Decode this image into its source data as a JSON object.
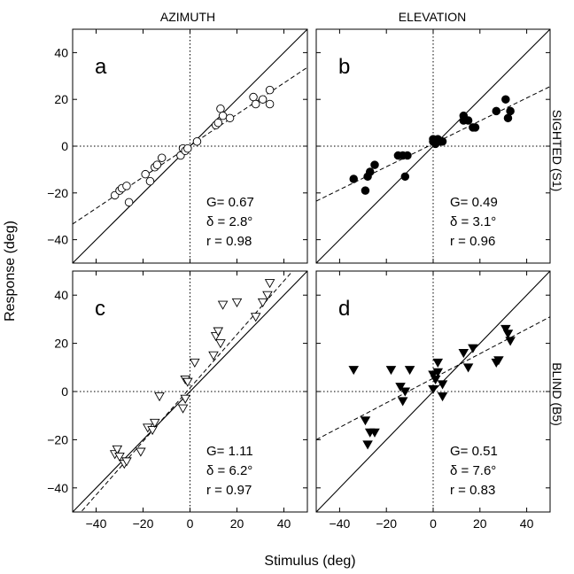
{
  "figure": {
    "xlabel": "Stimulus (deg)",
    "ylabel": "Response (deg)",
    "col_titles": [
      "AZIMUTH",
      "ELEVATION"
    ],
    "row_titles": [
      "SIGHTED (S1)",
      "BLIND (B5)"
    ]
  },
  "chart_data": [
    {
      "type": "scatter",
      "panel_label": "a",
      "marker": "circle-open",
      "xlim": [
        -50,
        50
      ],
      "ylim": [
        -50,
        50
      ],
      "xticks": [
        -40,
        -20,
        0,
        20,
        40
      ],
      "yticks": [
        -40,
        -20,
        0,
        20,
        40
      ],
      "stats": [
        "G= 0.67",
        "δ = 2.8°",
        "r  = 0.98"
      ],
      "fit": {
        "slope": 0.67,
        "intercept": 0.2
      },
      "points": [
        {
          "x": -32,
          "y": -21
        },
        {
          "x": -30,
          "y": -19
        },
        {
          "x": -29,
          "y": -18
        },
        {
          "x": -27,
          "y": -17
        },
        {
          "x": -26,
          "y": -24
        },
        {
          "x": -19,
          "y": -12
        },
        {
          "x": -17,
          "y": -15
        },
        {
          "x": -15,
          "y": -9
        },
        {
          "x": -14,
          "y": -8
        },
        {
          "x": -12,
          "y": -5
        },
        {
          "x": -4,
          "y": -4
        },
        {
          "x": -3,
          "y": -1
        },
        {
          "x": -2,
          "y": -2
        },
        {
          "x": -1,
          "y": -1
        },
        {
          "x": 3,
          "y": 2
        },
        {
          "x": 11,
          "y": 9
        },
        {
          "x": 12,
          "y": 10
        },
        {
          "x": 13,
          "y": 16
        },
        {
          "x": 14,
          "y": 13
        },
        {
          "x": 17,
          "y": 12
        },
        {
          "x": 27,
          "y": 21
        },
        {
          "x": 28,
          "y": 18
        },
        {
          "x": 31,
          "y": 20
        },
        {
          "x": 34,
          "y": 24
        },
        {
          "x": 34,
          "y": 18
        }
      ]
    },
    {
      "type": "scatter",
      "panel_label": "b",
      "marker": "circle-filled",
      "xlim": [
        -50,
        50
      ],
      "ylim": [
        -50,
        50
      ],
      "xticks": [
        -40,
        -20,
        0,
        20,
        40
      ],
      "yticks": [
        -40,
        -20,
        0,
        20,
        40
      ],
      "stats": [
        "G= 0.49",
        "δ = 3.1°",
        "r  = 0.96"
      ],
      "fit": {
        "slope": 0.49,
        "intercept": 1
      },
      "points": [
        {
          "x": -34,
          "y": -14
        },
        {
          "x": -29,
          "y": -19
        },
        {
          "x": -28,
          "y": -13
        },
        {
          "x": -27,
          "y": -11
        },
        {
          "x": -25,
          "y": -8
        },
        {
          "x": -15,
          "y": -4
        },
        {
          "x": -13,
          "y": -4
        },
        {
          "x": -12,
          "y": -13
        },
        {
          "x": -11,
          "y": -4
        },
        {
          "x": 0,
          "y": 3
        },
        {
          "x": 0,
          "y": 2
        },
        {
          "x": 1,
          "y": 1
        },
        {
          "x": 2,
          "y": 3
        },
        {
          "x": 3,
          "y": 2
        },
        {
          "x": 4,
          "y": 2
        },
        {
          "x": 13,
          "y": 13
        },
        {
          "x": 13,
          "y": 11
        },
        {
          "x": 15,
          "y": 11
        },
        {
          "x": 17,
          "y": 8
        },
        {
          "x": 18,
          "y": 8
        },
        {
          "x": 27,
          "y": 15
        },
        {
          "x": 31,
          "y": 20
        },
        {
          "x": 32,
          "y": 12
        },
        {
          "x": 33,
          "y": 15
        }
      ]
    },
    {
      "type": "scatter",
      "panel_label": "c",
      "marker": "triangle-down-open",
      "xlim": [
        -50,
        50
      ],
      "ylim": [
        -50,
        50
      ],
      "xticks": [
        -40,
        -20,
        0,
        20,
        40
      ],
      "yticks": [
        -40,
        -20,
        0,
        20,
        40
      ],
      "stats": [
        "G= 1.11",
        "δ = 6.2°",
        "r  = 0.97"
      ],
      "fit": {
        "slope": 1.11,
        "intercept": 1.5
      },
      "points": [
        {
          "x": -32,
          "y": -26
        },
        {
          "x": -31,
          "y": -24
        },
        {
          "x": -30,
          "y": -27
        },
        {
          "x": -28,
          "y": -30
        },
        {
          "x": -27,
          "y": -29
        },
        {
          "x": -21,
          "y": -25
        },
        {
          "x": -18,
          "y": -15
        },
        {
          "x": -16,
          "y": -16
        },
        {
          "x": -15,
          "y": -13
        },
        {
          "x": -13,
          "y": -2
        },
        {
          "x": -3,
          "y": -7
        },
        {
          "x": -2,
          "y": -3
        },
        {
          "x": -2,
          "y": 5
        },
        {
          "x": -1,
          "y": 4
        },
        {
          "x": 2,
          "y": 12
        },
        {
          "x": 10,
          "y": 15
        },
        {
          "x": 11,
          "y": 23
        },
        {
          "x": 12,
          "y": 25
        },
        {
          "x": 13,
          "y": 20
        },
        {
          "x": 14,
          "y": 36
        },
        {
          "x": 20,
          "y": 37
        },
        {
          "x": 28,
          "y": 31
        },
        {
          "x": 31,
          "y": 37
        },
        {
          "x": 33,
          "y": 40
        },
        {
          "x": 34,
          "y": 45
        }
      ]
    },
    {
      "type": "scatter",
      "panel_label": "d",
      "marker": "triangle-down-filled",
      "xlim": [
        -50,
        50
      ],
      "ylim": [
        -50,
        50
      ],
      "xticks": [
        -40,
        -20,
        0,
        20,
        40
      ],
      "yticks": [
        -40,
        -20,
        0,
        20,
        40
      ],
      "stats": [
        "G= 0.51",
        "δ = 7.6°",
        "r  = 0.83"
      ],
      "fit": {
        "slope": 0.51,
        "intercept": 5.5
      },
      "points": [
        {
          "x": -34,
          "y": 9
        },
        {
          "x": -29,
          "y": -12
        },
        {
          "x": -28,
          "y": -22
        },
        {
          "x": -27,
          "y": -17
        },
        {
          "x": -25,
          "y": -17
        },
        {
          "x": -18,
          "y": 9
        },
        {
          "x": -14,
          "y": 2
        },
        {
          "x": -13,
          "y": -4
        },
        {
          "x": -12,
          "y": 0
        },
        {
          "x": -10,
          "y": 9
        },
        {
          "x": 0,
          "y": 1
        },
        {
          "x": 0,
          "y": 7
        },
        {
          "x": 1,
          "y": 5
        },
        {
          "x": 2,
          "y": 12
        },
        {
          "x": 2,
          "y": 8
        },
        {
          "x": 4,
          "y": -2
        },
        {
          "x": 4,
          "y": 3
        },
        {
          "x": 13,
          "y": 16
        },
        {
          "x": 15,
          "y": 10
        },
        {
          "x": 17,
          "y": 18
        },
        {
          "x": 27,
          "y": 12
        },
        {
          "x": 28,
          "y": 13
        },
        {
          "x": 31,
          "y": 26
        },
        {
          "x": 32,
          "y": 24
        },
        {
          "x": 33,
          "y": 21
        }
      ]
    }
  ]
}
